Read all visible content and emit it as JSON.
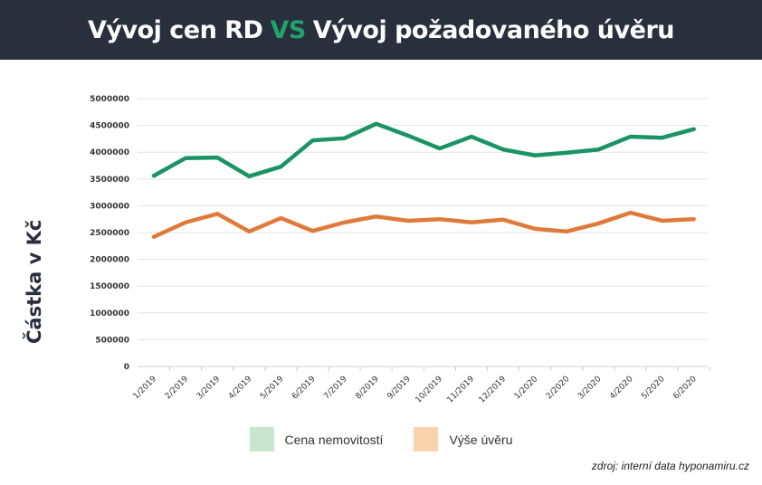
{
  "header": {
    "title_part1": "Vývoj cen RD",
    "vs": "VS",
    "title_part2": "Vývoj požadovaného úvěru"
  },
  "chart_data": {
    "type": "line",
    "title": "Vývoj cen RD VS Vývoj požadovaného úvěru",
    "xlabel": "",
    "ylabel": "Částka v Kč",
    "ylim": [
      0,
      5000000
    ],
    "yticks": [
      "0",
      "500000",
      "1000000",
      "1500000",
      "2000000",
      "2500000",
      "3000000",
      "3500000",
      "4000000",
      "4500000",
      "5000000"
    ],
    "categories": [
      "1/2019",
      "2/2019",
      "3/2019",
      "4/2019",
      "5/2019",
      "6/2019",
      "7/2019",
      "8/2019",
      "9/2019",
      "10/2019",
      "11/2019",
      "12/2019",
      "1/2020",
      "2/2020",
      "3/2020",
      "4/2020",
      "5/2020",
      "6/2020"
    ],
    "series": [
      {
        "name": "Cena nemovitostí",
        "color": "#1a9464",
        "legend_color": "#c8e6cd",
        "values": [
          3560000,
          3890000,
          3900000,
          3550000,
          3730000,
          4220000,
          4260000,
          4530000,
          4310000,
          4070000,
          4290000,
          4050000,
          3940000,
          3990000,
          4050000,
          4290000,
          4270000,
          4430000
        ]
      },
      {
        "name": "Výše úvěru",
        "color": "#e07a3a",
        "legend_color": "#fad3ad",
        "values": [
          2420000,
          2690000,
          2850000,
          2520000,
          2770000,
          2530000,
          2690000,
          2800000,
          2720000,
          2750000,
          2690000,
          2740000,
          2570000,
          2520000,
          2670000,
          2870000,
          2720000,
          2750000
        ]
      }
    ],
    "grid": true,
    "legend_position": "bottom"
  },
  "source": "zdroj: interní data hyponamiru.cz"
}
